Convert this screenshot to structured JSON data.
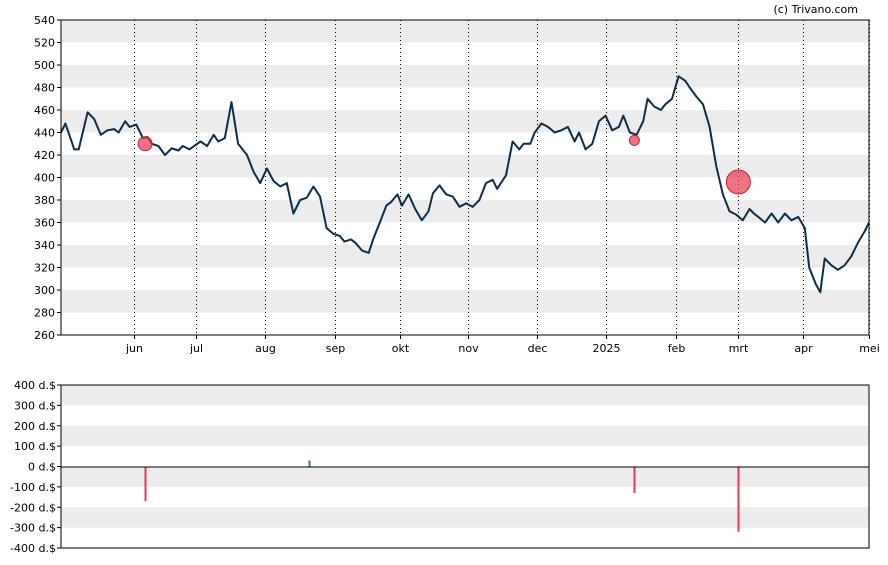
{
  "credit": "(c) Trivano.com",
  "colors": {
    "price_line": "#0b2f4a",
    "band": "#ececec",
    "sell_marker": "#e8384f",
    "buy_marker": "#2e8b57",
    "grid": "#000000"
  },
  "chart_data": [
    {
      "type": "line",
      "title": "",
      "x_tick_labels": [
        "jun",
        "jul",
        "aug",
        "sep",
        "okt",
        "nov",
        "dec",
        "2025",
        "feb",
        "mrt",
        "apr",
        "mei"
      ],
      "x_tick_dates": [
        "2024-06-03",
        "2024-07-01",
        "2024-08-01",
        "2024-09-02",
        "2024-10-01",
        "2024-11-01",
        "2024-12-02",
        "2025-01-02",
        "2025-02-03",
        "2025-03-03",
        "2025-04-01",
        "2025-05-01"
      ],
      "x_range": [
        "2024-05-01",
        "2025-05-01"
      ],
      "ylim": [
        260,
        540
      ],
      "y_ticks": [
        260,
        280,
        300,
        320,
        340,
        360,
        380,
        400,
        420,
        440,
        460,
        480,
        500,
        520,
        540
      ],
      "grid": "horizontal bands, dotted vertical month lines",
      "series": [
        {
          "points": [
            [
              "2024-05-01",
              440
            ],
            [
              "2024-05-03",
              448
            ],
            [
              "2024-05-07",
              425
            ],
            [
              "2024-05-09",
              425
            ],
            [
              "2024-05-13",
              458
            ],
            [
              "2024-05-16",
              452
            ],
            [
              "2024-05-19",
              438
            ],
            [
              "2024-05-22",
              442
            ],
            [
              "2024-05-25",
              443
            ],
            [
              "2024-05-27",
              440
            ],
            [
              "2024-05-30",
              450
            ],
            [
              "2024-06-01",
              445
            ],
            [
              "2024-06-04",
              447
            ],
            [
              "2024-06-07",
              435
            ],
            [
              "2024-06-09",
              436
            ],
            [
              "2024-06-11",
              430
            ],
            [
              "2024-06-14",
              428
            ],
            [
              "2024-06-17",
              420
            ],
            [
              "2024-06-20",
              426
            ],
            [
              "2024-06-23",
              424
            ],
            [
              "2024-06-25",
              428
            ],
            [
              "2024-06-28",
              425
            ],
            [
              "2024-07-03",
              432
            ],
            [
              "2024-07-06",
              428
            ],
            [
              "2024-07-09",
              438
            ],
            [
              "2024-07-11",
              432
            ],
            [
              "2024-07-14",
              435
            ],
            [
              "2024-07-17",
              467
            ],
            [
              "2024-07-20",
              430
            ],
            [
              "2024-07-24",
              420
            ],
            [
              "2024-07-27",
              405
            ],
            [
              "2024-07-30",
              395
            ],
            [
              "2024-08-02",
              408
            ],
            [
              "2024-08-05",
              397
            ],
            [
              "2024-08-08",
              392
            ],
            [
              "2024-08-11",
              395
            ],
            [
              "2024-08-14",
              368
            ],
            [
              "2024-08-17",
              380
            ],
            [
              "2024-08-20",
              382
            ],
            [
              "2024-08-23",
              392
            ],
            [
              "2024-08-26",
              383
            ],
            [
              "2024-08-29",
              355
            ],
            [
              "2024-09-01",
              350
            ],
            [
              "2024-09-04",
              348
            ],
            [
              "2024-09-06",
              343
            ],
            [
              "2024-09-09",
              345
            ],
            [
              "2024-09-11",
              342
            ],
            [
              "2024-09-14",
              335
            ],
            [
              "2024-09-17",
              333
            ],
            [
              "2024-09-19",
              345
            ],
            [
              "2024-09-22",
              360
            ],
            [
              "2024-09-25",
              375
            ],
            [
              "2024-09-27",
              378
            ],
            [
              "2024-09-30",
              385
            ],
            [
              "2024-10-02",
              375
            ],
            [
              "2024-10-05",
              385
            ],
            [
              "2024-10-08",
              372
            ],
            [
              "2024-10-11",
              362
            ],
            [
              "2024-10-14",
              370
            ],
            [
              "2024-10-16",
              386
            ],
            [
              "2024-10-19",
              393
            ],
            [
              "2024-10-22",
              385
            ],
            [
              "2024-10-25",
              383
            ],
            [
              "2024-10-28",
              374
            ],
            [
              "2024-10-31",
              377
            ],
            [
              "2024-11-03",
              374
            ],
            [
              "2024-11-06",
              380
            ],
            [
              "2024-11-09",
              395
            ],
            [
              "2024-11-12",
              398
            ],
            [
              "2024-11-14",
              390
            ],
            [
              "2024-11-18",
              402
            ],
            [
              "2024-11-21",
              432
            ],
            [
              "2024-11-24",
              425
            ],
            [
              "2024-11-26",
              430
            ],
            [
              "2024-11-29",
              430
            ],
            [
              "2024-12-01",
              440
            ],
            [
              "2024-12-04",
              448
            ],
            [
              "2024-12-07",
              445
            ],
            [
              "2024-12-10",
              440
            ],
            [
              "2024-12-13",
              442
            ],
            [
              "2024-12-16",
              445
            ],
            [
              "2024-12-19",
              432
            ],
            [
              "2024-12-21",
              440
            ],
            [
              "2024-12-24",
              425
            ],
            [
              "2024-12-27",
              430
            ],
            [
              "2024-12-30",
              450
            ],
            [
              "2025-01-02",
              455
            ],
            [
              "2025-01-05",
              442
            ],
            [
              "2025-01-08",
              445
            ],
            [
              "2025-01-10",
              455
            ],
            [
              "2025-01-13",
              440
            ],
            [
              "2025-01-16",
              438
            ],
            [
              "2025-01-19",
              450
            ],
            [
              "2025-01-21",
              470
            ],
            [
              "2025-01-24",
              463
            ],
            [
              "2025-01-27",
              460
            ],
            [
              "2025-01-29",
              465
            ],
            [
              "2025-02-01",
              470
            ],
            [
              "2025-02-04",
              490
            ],
            [
              "2025-02-07",
              486
            ],
            [
              "2025-02-09",
              480
            ],
            [
              "2025-02-12",
              472
            ],
            [
              "2025-02-15",
              465
            ],
            [
              "2025-02-18",
              445
            ],
            [
              "2025-02-21",
              410
            ],
            [
              "2025-02-24",
              385
            ],
            [
              "2025-02-27",
              370
            ],
            [
              "2025-03-02",
              367
            ],
            [
              "2025-03-05",
              362
            ],
            [
              "2025-03-08",
              372
            ],
            [
              "2025-03-10",
              368
            ],
            [
              "2025-03-12",
              365
            ],
            [
              "2025-03-15",
              360
            ],
            [
              "2025-03-18",
              368
            ],
            [
              "2025-03-21",
              360
            ],
            [
              "2025-03-24",
              368
            ],
            [
              "2025-03-27",
              362
            ],
            [
              "2025-03-30",
              365
            ],
            [
              "2025-04-02",
              355
            ],
            [
              "2025-04-04",
              320
            ],
            [
              "2025-04-07",
              305
            ],
            [
              "2025-04-09",
              298
            ],
            [
              "2025-04-11",
              328
            ],
            [
              "2025-04-14",
              322
            ],
            [
              "2025-04-17",
              318
            ],
            [
              "2025-04-20",
              322
            ],
            [
              "2025-04-23",
              330
            ],
            [
              "2025-04-26",
              342
            ],
            [
              "2025-04-29",
              352
            ],
            [
              "2025-05-01",
              360
            ]
          ]
        }
      ],
      "markers": [
        {
          "date": "2024-06-08",
          "price": 430,
          "type": "sell",
          "size": "medium"
        },
        {
          "date": "2025-01-15",
          "price": 433,
          "type": "sell",
          "size": "small"
        },
        {
          "date": "2025-03-03",
          "price": 396,
          "type": "sell",
          "size": "large"
        }
      ]
    },
    {
      "type": "bar",
      "title": "",
      "unit": "d.$",
      "ylim": [
        -400,
        400
      ],
      "y_tick_labels": [
        "400 d.$",
        "300 d.$",
        "200 d.$",
        "100 d.$",
        "0 d.$",
        "-100 d.$",
        "-200 d.$",
        "-300 d.$",
        "-400 d.$"
      ],
      "y_ticks": [
        400,
        300,
        200,
        100,
        0,
        -100,
        -200,
        -300,
        -400
      ],
      "series": [
        {
          "points": [
            [
              "2024-06-08",
              -170
            ],
            [
              "2024-08-21",
              30
            ],
            [
              "2025-01-15",
              -130
            ],
            [
              "2025-03-03",
              -320
            ]
          ]
        }
      ]
    }
  ]
}
